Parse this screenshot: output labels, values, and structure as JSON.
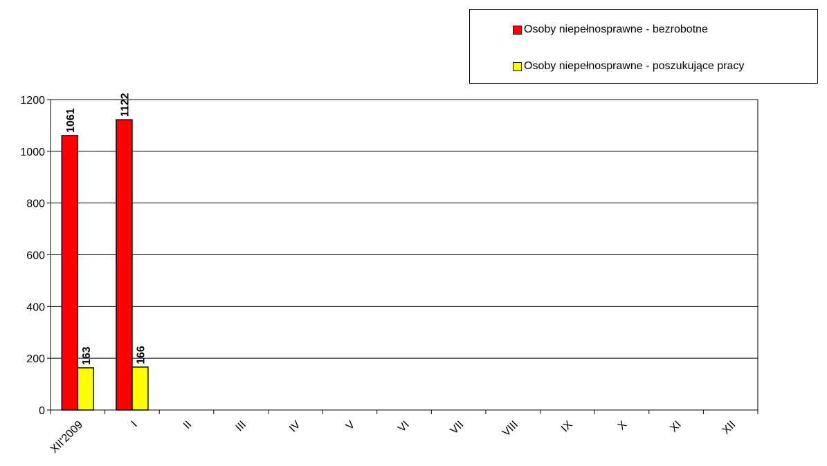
{
  "chart_data": {
    "type": "bar",
    "categories": [
      "XII'2009",
      "I",
      "II",
      "III",
      "IV",
      "V",
      "VI",
      "VII",
      "VIII",
      "IX",
      "X",
      "XI",
      "XII"
    ],
    "series": [
      {
        "name": "Osoby niepełnosprawne - bezrobotne",
        "color": "#ff0000",
        "values": [
          1061,
          1122,
          null,
          null,
          null,
          null,
          null,
          null,
          null,
          null,
          null,
          null,
          null
        ]
      },
      {
        "name": "Osoby niepełnosprawne - poszukujące pracy",
        "color": "#ffff00",
        "values": [
          163,
          166,
          null,
          null,
          null,
          null,
          null,
          null,
          null,
          null,
          null,
          null,
          null
        ]
      }
    ],
    "ylim": [
      0,
      1200
    ],
    "yticks": [
      0,
      200,
      400,
      600,
      800,
      1000,
      1200
    ],
    "grid": true,
    "legend_position": "top-right"
  }
}
